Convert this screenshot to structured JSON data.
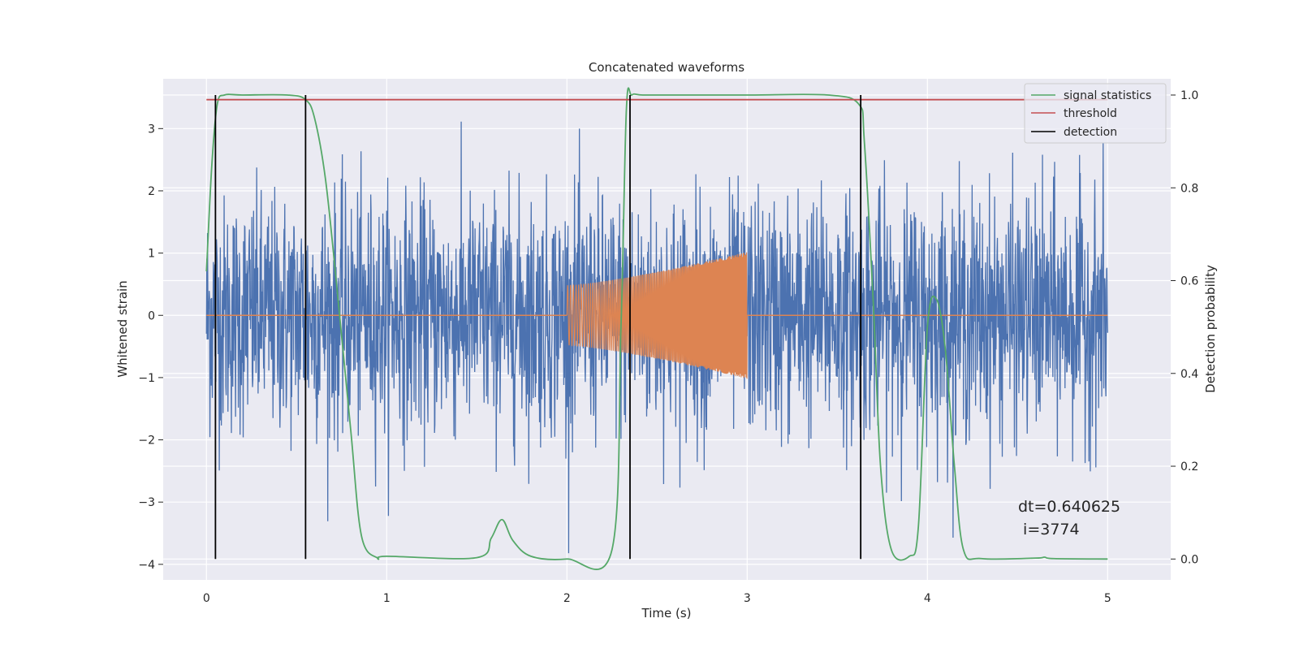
{
  "chart_data": {
    "type": "line",
    "title": "Concatenated waveforms",
    "xlabel": "Time (s)",
    "ylabel_left": "Whitened strain",
    "ylabel_right": "Detection probability",
    "xlim": [
      -0.24,
      5.35
    ],
    "ylim_left": [
      -4.25,
      3.8
    ],
    "ylim_right": [
      -0.045,
      1.035
    ],
    "x_ticks": [
      0,
      1,
      2,
      3,
      4,
      5
    ],
    "y_left_ticks": [
      -4,
      -3,
      -2,
      -1,
      0,
      1,
      2,
      3
    ],
    "y_right_ticks": [
      0.0,
      0.2,
      0.4,
      0.6,
      0.8,
      1.0
    ],
    "grid": true,
    "legend_position": "top-right",
    "legend": [
      "signal statistics",
      "threshold",
      "detection"
    ],
    "series": [
      {
        "kind": "noise",
        "axis": "left",
        "x_range": [
          0,
          5
        ],
        "color": "#4c72b0"
      },
      {
        "kind": "chirp",
        "axis": "left",
        "x_range": [
          2.0,
          3.0
        ],
        "amplitude": [
          0.48,
          1.02
        ],
        "color": "#dd8452"
      },
      {
        "kind": "line",
        "name": "signal statistics",
        "axis": "right",
        "color": "#55a868",
        "x": [
          0,
          0.03,
          0.06,
          0.1,
          0.2,
          0.45,
          0.55,
          0.6,
          0.66,
          0.72,
          0.8,
          0.86,
          0.95,
          1.0,
          1.5,
          1.58,
          1.64,
          1.7,
          1.8,
          2.0,
          2.25,
          2.3,
          2.33,
          2.36,
          2.42,
          2.6,
          3.0,
          3.45,
          3.62,
          3.65,
          3.7,
          3.74,
          3.8,
          3.9,
          3.95,
          4.0,
          4.05,
          4.1,
          4.15,
          4.2,
          4.3,
          4.6,
          4.65,
          4.7,
          5.0
        ],
        "y": [
          0.62,
          0.85,
          0.98,
          1.0,
          1.0,
          1.0,
          0.99,
          0.95,
          0.82,
          0.6,
          0.28,
          0.05,
          0.002,
          0.006,
          0.003,
          0.045,
          0.085,
          0.04,
          0.006,
          0.0,
          0.02,
          0.5,
          0.97,
          1.0,
          1.0,
          1.0,
          1.0,
          1.0,
          0.98,
          0.9,
          0.55,
          0.2,
          0.02,
          0.006,
          0.07,
          0.5,
          0.56,
          0.45,
          0.2,
          0.02,
          0.001,
          0.002,
          0.004,
          0.001,
          0.0
        ]
      },
      {
        "kind": "hline",
        "name": "threshold",
        "axis": "right",
        "color": "#c44e52",
        "x_range": [
          0,
          5
        ],
        "value": 0.99
      },
      {
        "kind": "vlines",
        "name": "detection",
        "axis": "right",
        "color": "#000000",
        "x": [
          0.05,
          0.55,
          2.35,
          3.63
        ],
        "y_range": [
          0.0,
          1.0
        ]
      }
    ],
    "annotation": {
      "line1": "dt=0.640625",
      "line2": " i=3774"
    },
    "colors": {
      "background": "#eaeaf2",
      "grid": "#ffffff",
      "text": "#262626"
    }
  }
}
